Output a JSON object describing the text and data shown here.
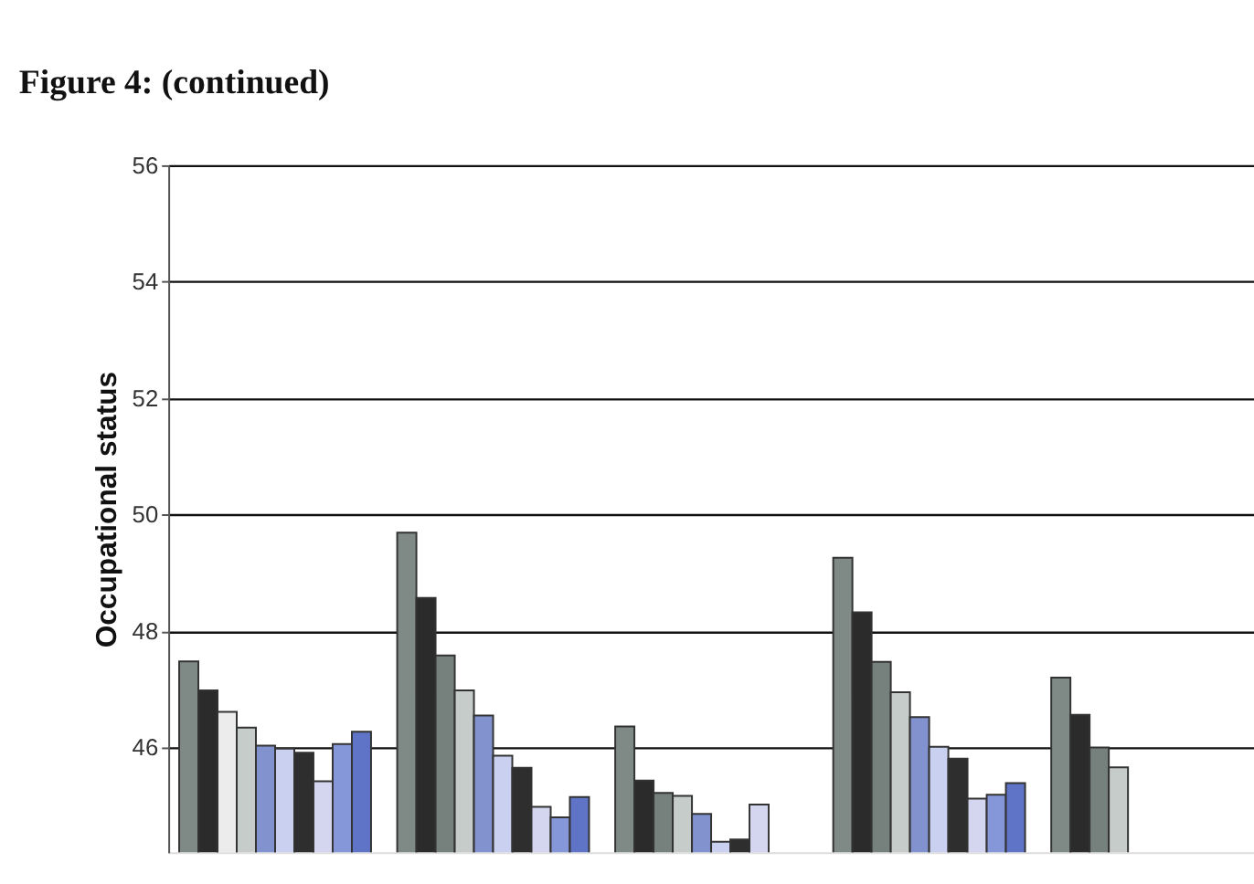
{
  "chart_data": {
    "type": "bar",
    "title": "Figure 4: (continued)",
    "ylabel": "Occupational status",
    "categories": [
      null,
      null,
      null,
      null,
      null
    ],
    "series": [
      {
        "color": "#7f8986",
        "values": [
          47.48,
          49.69,
          46.36,
          49.26,
          47.2
        ]
      },
      {
        "color": "#2b2b2b",
        "values": [
          46.98,
          48.57,
          45.43,
          48.32,
          46.56
        ]
      },
      {
        "colors": [
          "#ececec",
          "#76817e",
          "#76817e",
          "#76817e",
          "#76817e"
        ],
        "values": [
          46.61,
          47.58,
          45.22,
          47.47,
          46.0
        ]
      },
      {
        "color": "#c5ccc9",
        "values": [
          46.34,
          46.98,
          45.17,
          46.95,
          45.66
        ]
      },
      {
        "color": "#8292cf",
        "values": [
          46.03,
          46.55,
          44.86,
          46.52,
          null
        ]
      },
      {
        "color": "#c9d0f0",
        "values": [
          45.98,
          45.86,
          44.38,
          46.01,
          null
        ]
      },
      {
        "color": "#2e2e2e",
        "values": [
          45.91,
          45.65,
          44.42,
          45.81,
          null
        ]
      },
      {
        "color": "#d3d6ee",
        "values": [
          45.42,
          44.98,
          45.02,
          45.12,
          null
        ]
      },
      {
        "color": "#8597d8",
        "values": [
          46.06,
          44.8,
          null,
          45.19,
          null
        ]
      },
      {
        "color": "#5f74c6",
        "values": [
          46.27,
          45.15,
          null,
          45.39,
          null
        ]
      }
    ],
    "ylim": [
      44.2,
      56
    ],
    "yticks": [
      46,
      48,
      50,
      52,
      54,
      56
    ],
    "grid": "y",
    "tick_labels": "y"
  }
}
